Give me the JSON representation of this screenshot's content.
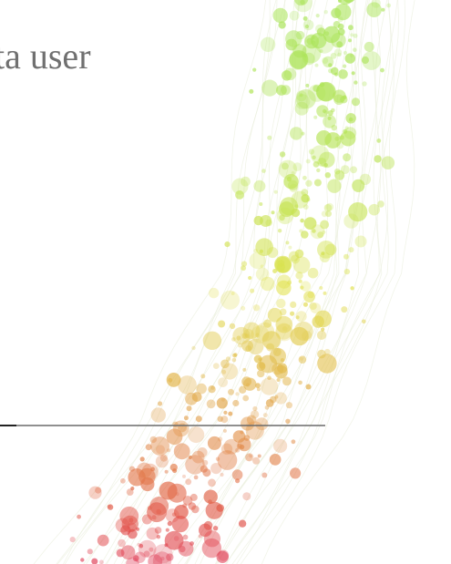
{
  "headline": "ta user"
}
